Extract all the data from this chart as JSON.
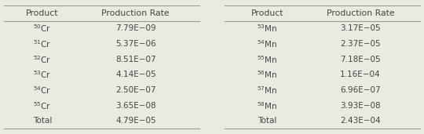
{
  "cr_products": [
    {
      "product": "$^{50}$Cr",
      "rate": "7.79E−09"
    },
    {
      "product": "$^{51}$Cr",
      "rate": "5.37E−06"
    },
    {
      "product": "$^{52}$Cr",
      "rate": "8.51E−07"
    },
    {
      "product": "$^{53}$Cr",
      "rate": "4.14E−05"
    },
    {
      "product": "$^{54}$Cr",
      "rate": "2.50E−07"
    },
    {
      "product": "$^{55}$Cr",
      "rate": "3.65E−08"
    },
    {
      "product": "Total",
      "rate": "4.79E−05"
    }
  ],
  "mn_products": [
    {
      "product": "$^{53}$Mn",
      "rate": "3.17E−05"
    },
    {
      "product": "$^{54}$Mn",
      "rate": "2.37E−05"
    },
    {
      "product": "$^{55}$Mn",
      "rate": "7.18E−05"
    },
    {
      "product": "$^{56}$Mn",
      "rate": "1.16E−04"
    },
    {
      "product": "$^{57}$Mn",
      "rate": "6.96E−07"
    },
    {
      "product": "$^{58}$Mn",
      "rate": "3.93E−08"
    },
    {
      "product": "Total",
      "rate": "2.43E−04"
    }
  ],
  "col_headers": [
    "Product",
    "Production Rate"
  ],
  "bg_color": "#e8ece0",
  "line_color": "#999999",
  "text_color": "#444444",
  "font_size": 7.5,
  "header_font_size": 7.8
}
